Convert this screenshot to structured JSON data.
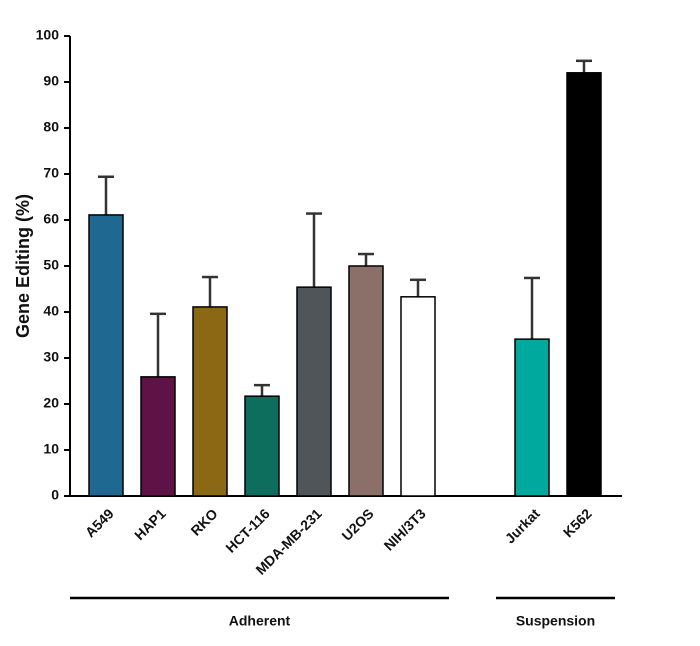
{
  "chart_data": {
    "type": "bar",
    "y_label": "Gene  Editing (%)",
    "ylim": [
      0,
      100
    ],
    "yticks": [
      0,
      10,
      20,
      30,
      40,
      50,
      60,
      70,
      80,
      90,
      100
    ],
    "groups": [
      {
        "name": "Adherent",
        "categories": [
          "A549",
          "HAP1",
          "RKO",
          "HCT-116",
          "MDA-MB-231",
          "U2OS",
          "NIH/3T3"
        ],
        "values": [
          61.1,
          25.9,
          41.1,
          21.7,
          45.4,
          50,
          43.3
        ],
        "errors": [
          8.3,
          13.7,
          6.5,
          2.4,
          16,
          2.6,
          3.7
        ],
        "colors": [
          "#1f6891",
          "#5e1245",
          "#8b6914",
          "#0e6e5e",
          "#4f5559",
          "#8a7068",
          "#ffffff"
        ]
      },
      {
        "name": "Suspension",
        "categories": [
          "Jurkat",
          "K562"
        ],
        "values": [
          34.1,
          92
        ],
        "errors": [
          13.3,
          2.6
        ],
        "colors": [
          "#00a99d",
          "#000000"
        ]
      }
    ]
  }
}
